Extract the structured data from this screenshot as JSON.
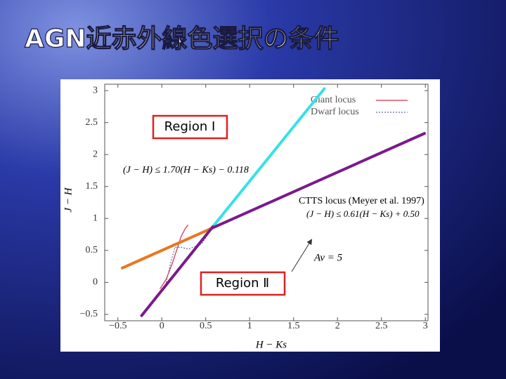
{
  "chart_data": {
    "type": "line",
    "title": "AGN近赤外線色選択の条件",
    "x_label": "H − Ks",
    "y_label": "J − H",
    "xlim": [
      -0.65,
      3.03
    ],
    "ylim": [
      -0.6,
      3.1
    ],
    "xticks": [
      {
        "value": -0.5,
        "label": "−0.5"
      },
      0,
      0.5,
      1,
      1.5,
      2,
      2.5,
      3
    ],
    "yticks": [
      {
        "value": -0.5,
        "label": "−0.5"
      },
      0,
      0.5,
      1,
      1.5,
      2,
      2.5,
      3
    ],
    "series": [
      {
        "name": "Giant locus",
        "color": "#d0304a",
        "dash": "none",
        "width": 1.2,
        "x": [
          -0.02,
          0.05,
          0.12,
          0.18,
          0.22,
          0.27,
          0.3
        ],
        "values": [
          -0.1,
          0.05,
          0.3,
          0.55,
          0.72,
          0.85,
          0.9
        ]
      },
      {
        "name": "Dwarf locus",
        "color": "#6a6aa8",
        "dash": "2 2",
        "width": 1.2,
        "x": [
          0.05,
          0.1,
          0.15,
          0.22,
          0.3,
          0.45,
          0.55
        ],
        "values": [
          0.0,
          0.3,
          0.55,
          0.55,
          0.52,
          0.6,
          0.8
        ]
      }
    ],
    "lines": [
      {
        "color": "#38e0ea",
        "x": [
          0.58,
          1.85
        ],
        "values": [
          0.87,
          3.03
        ]
      },
      {
        "color": "#e8781e",
        "x": [
          -0.45,
          0.58
        ],
        "values": [
          0.225,
          0.854
        ]
      },
      {
        "color": "#7a1a8c",
        "x": [
          0.58,
          2.99
        ],
        "values": [
          0.854,
          2.33
        ]
      },
      {
        "color": "#7a1a8c",
        "x": [
          -0.23,
          0.58
        ],
        "values": [
          -0.52,
          0.87
        ]
      }
    ],
    "annotations": {
      "region1": "Region Ⅰ",
      "region2": "Region Ⅱ",
      "eq1": "(J − H) ≤ 1.70(H − Ks) − 0.118",
      "ctts": "CTTS locus (Meyer et al. 1997)",
      "eq2": "(J − H) ≤ 0.61(H − Ks) + 0.50",
      "av": "Av = 5"
    }
  }
}
